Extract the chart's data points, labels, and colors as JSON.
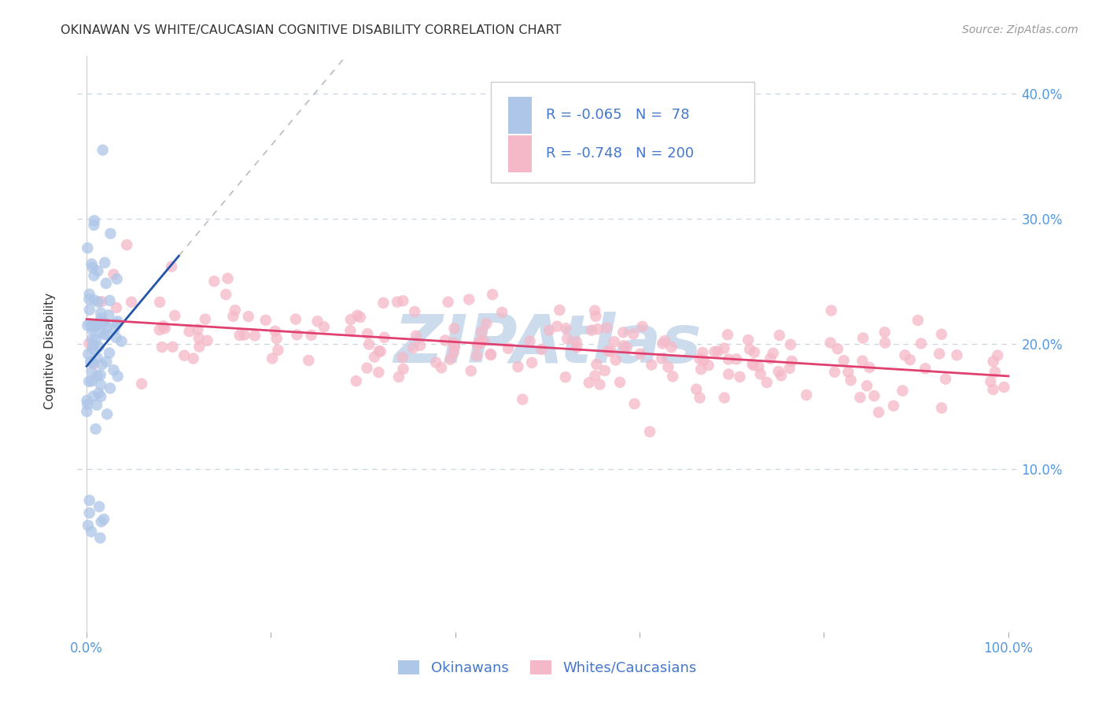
{
  "title": "OKINAWAN VS WHITE/CAUCASIAN COGNITIVE DISABILITY CORRELATION CHART",
  "source": "Source: ZipAtlas.com",
  "ylabel": "Cognitive Disability",
  "okinawan_color": "#aec6e8",
  "okinawan_edge_color": "#aec6e8",
  "okinawan_line_color": "#2255aa",
  "caucasian_color": "#f5b8c8",
  "caucasian_edge_color": "#f5b8c8",
  "caucasian_line_color": "#e04070",
  "dash_ext_color": "#bbbbbb",
  "watermark_color": "#ccdcec",
  "background_color": "#ffffff",
  "grid_color": "#c8d4e4",
  "title_color": "#333333",
  "axis_tick_color": "#5599dd",
  "source_color": "#999999",
  "legend_R_color": "#4477cc",
  "legend_border_color": "#cccccc",
  "okinawan_R": -0.065,
  "okinawan_N": 78,
  "caucasian_R": -0.748,
  "caucasian_N": 200,
  "seed_okinawan": 42,
  "seed_caucasian": 123
}
